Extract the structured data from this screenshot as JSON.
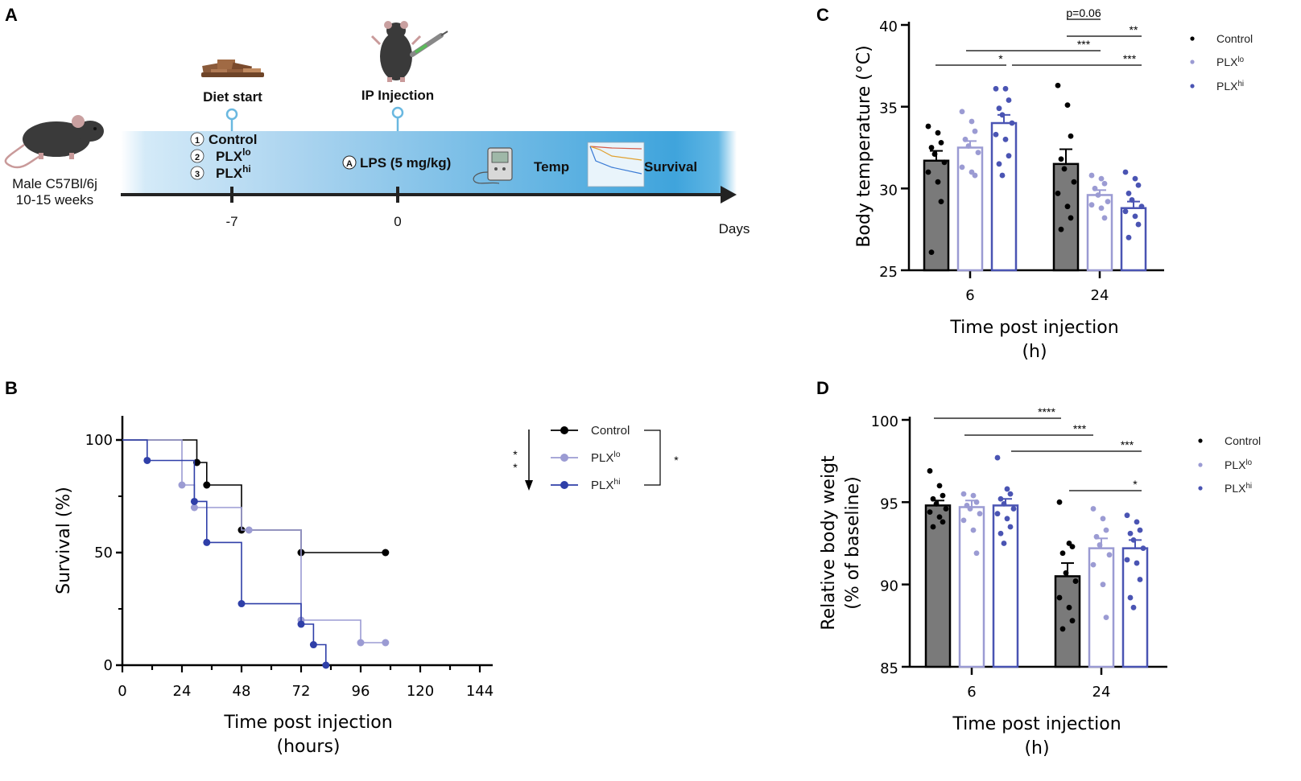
{
  "colors": {
    "control": "#000000",
    "plx_lo": "#9b9bd3",
    "plx_hi": "#4a54b3",
    "plx_hi_line": "#2f3fa8",
    "control_bar": "#7a7a7a",
    "timeline_blue": "#3fa4dc"
  },
  "panel_a": {
    "letter": "A",
    "mouse_caption_1": "Male C57Bl/6j",
    "mouse_caption_2": "10-15 weeks",
    "diet_start": "Diet start",
    "ip_injection": "IP Injection",
    "groups": [
      {
        "num": "1",
        "name": "Control",
        "sup": ""
      },
      {
        "num": "2",
        "name": "PLX",
        "sup": "lo"
      },
      {
        "num": "3",
        "name": "PLX",
        "sup": "hi"
      }
    ],
    "lps_badge": "A",
    "lps_text": "LPS (5 mg/kg)",
    "temp": "Temp",
    "survival": "Survival",
    "tick_minus7": "-7",
    "tick_0": "0",
    "axis_label": "Days",
    "icons": [
      "mouse-icon",
      "food-pellets-icon",
      "injected-mouse-icon",
      "syringe-icon",
      "thermometer-device-icon",
      "survival-curve-icon"
    ]
  },
  "panel_b": {
    "letter": "B",
    "ylabel": "Survival (%)",
    "xlabel_1": "Time post injection",
    "xlabel_2": "(hours)",
    "legend": [
      {
        "name": "Control",
        "sup": ""
      },
      {
        "name": "PLX",
        "sup": "lo"
      },
      {
        "name": "PLX",
        "sup": "hi"
      }
    ],
    "sig_trend": "* *",
    "sig_bracket": "*"
  },
  "panel_c": {
    "letter": "C",
    "ylabel": "Body temperature (°C)",
    "xlabel_1": "Time post injection",
    "xlabel_2": "(h)",
    "legend": [
      {
        "name": "Control",
        "sup": ""
      },
      {
        "name": "PLX",
        "sup": "lo"
      },
      {
        "name": "PLX",
        "sup": "hi"
      }
    ],
    "sig": [
      {
        "label": "p=0.06"
      },
      {
        "label": "**"
      },
      {
        "label": "***"
      },
      {
        "label": "*"
      },
      {
        "label": "***"
      }
    ]
  },
  "panel_d": {
    "letter": "D",
    "ylabel_1": "Relative body weigt",
    "ylabel_2": "(% of baseline)",
    "xlabel_1": "Time post injection",
    "xlabel_2": "(h)",
    "legend": [
      {
        "name": "Control",
        "sup": ""
      },
      {
        "name": "PLX",
        "sup": "lo"
      },
      {
        "name": "PLX",
        "sup": "hi"
      }
    ],
    "sig": [
      {
        "label": "****"
      },
      {
        "label": "***"
      },
      {
        "label": "***"
      },
      {
        "label": "*"
      }
    ]
  },
  "chart_data": [
    {
      "type": "line",
      "subtype": "kaplan-meier",
      "panel": "B",
      "xlabel": "Time post injection (hours)",
      "ylabel": "Survival (%)",
      "xlim": [
        0,
        144
      ],
      "ylim": [
        0,
        100
      ],
      "xticks": [
        0,
        24,
        48,
        72,
        96,
        120,
        144
      ],
      "yticks": [
        0,
        50,
        100
      ],
      "series": [
        {
          "name": "Control",
          "steps": [
            [
              0,
              100
            ],
            [
              30,
              100
            ],
            [
              30,
              90
            ],
            [
              34,
              90
            ],
            [
              34,
              80
            ],
            [
              48,
              80
            ],
            [
              48,
              60
            ],
            [
              72,
              60
            ],
            [
              72,
              50
            ],
            [
              106,
              50
            ]
          ],
          "markers": [
            [
              30,
              90
            ],
            [
              34,
              80
            ],
            [
              48,
              60
            ],
            [
              72,
              50
            ],
            [
              106,
              50
            ]
          ]
        },
        {
          "name": "PLXlo",
          "steps": [
            [
              0,
              100
            ],
            [
              24,
              100
            ],
            [
              24,
              80
            ],
            [
              29,
              80
            ],
            [
              29,
              70
            ],
            [
              48,
              70
            ],
            [
              48,
              60
            ],
            [
              72,
              60
            ],
            [
              72,
              20
            ],
            [
              96,
              20
            ],
            [
              96,
              10
            ],
            [
              106,
              10
            ]
          ],
          "markers": [
            [
              24,
              80
            ],
            [
              29,
              70
            ],
            [
              51,
              60
            ],
            [
              72,
              20
            ],
            [
              96,
              10
            ],
            [
              106,
              10
            ]
          ]
        },
        {
          "name": "PLXhi",
          "steps": [
            [
              0,
              100
            ],
            [
              10,
              100
            ],
            [
              10,
              90.9
            ],
            [
              29,
              90.9
            ],
            [
              29,
              72.7
            ],
            [
              34,
              72.7
            ],
            [
              34,
              54.5
            ],
            [
              48,
              54.5
            ],
            [
              48,
              27.3
            ],
            [
              72,
              27.3
            ],
            [
              72,
              18.2
            ],
            [
              77,
              18.2
            ],
            [
              77,
              9.1
            ],
            [
              82,
              9.1
            ],
            [
              82,
              0
            ]
          ],
          "markers": [
            [
              10,
              90.9
            ],
            [
              29,
              72.7
            ],
            [
              34,
              54.5
            ],
            [
              48,
              27.3
            ],
            [
              72,
              18.2
            ],
            [
              77,
              9.1
            ],
            [
              82,
              0
            ]
          ]
        }
      ]
    },
    {
      "type": "bar",
      "panel": "C",
      "categories": [
        "6",
        "24"
      ],
      "xlabel": "Time post injection (h)",
      "ylabel": "Body temperature (°C)",
      "ylim": [
        25,
        40
      ],
      "yticks": [
        25,
        30,
        35,
        40
      ],
      "series": [
        {
          "name": "Control",
          "values": [
            31.7,
            31.5
          ],
          "sem": [
            0.6,
            0.9
          ],
          "points": [
            [
              33.8,
              33.4,
              32.8,
              32.5,
              32.1,
              31.6,
              31.0,
              30.4,
              29.2,
              26.1
            ],
            [
              36.3,
              35.1,
              33.2,
              31.8,
              31.2,
              30.4,
              29.7,
              28.9,
              28.2,
              27.5
            ]
          ]
        },
        {
          "name": "PLXlo",
          "values": [
            32.5,
            29.6
          ],
          "sem": [
            0.4,
            0.3
          ],
          "points": [
            [
              34.7,
              34.1,
              33.5,
              33.0,
              32.6,
              32.2,
              31.3,
              31.0,
              30.8
            ],
            [
              30.8,
              30.6,
              30.3,
              30.0,
              29.6,
              29.2,
              29.0,
              28.8,
              28.2
            ]
          ]
        },
        {
          "name": "PLXhi",
          "values": [
            34.0,
            28.8
          ],
          "sem": [
            0.5,
            0.4
          ],
          "points": [
            [
              36.1,
              36.1,
              35.4,
              34.9,
              34.5,
              34.0,
              33.3,
              33.0,
              32.0,
              31.5,
              30.8
            ],
            [
              31.0,
              30.6,
              30.2,
              29.7,
              29.3,
              28.9,
              28.6,
              28.3,
              27.8,
              27.0
            ]
          ]
        }
      ]
    },
    {
      "type": "bar",
      "panel": "D",
      "categories": [
        "6",
        "24"
      ],
      "xlabel": "Time post injection (h)",
      "ylabel": "Relative body weigt (% of baseline)",
      "ylim": [
        85,
        100
      ],
      "yticks": [
        85,
        90,
        95,
        100
      ],
      "series": [
        {
          "name": "Control",
          "values": [
            94.8,
            90.5
          ],
          "sem": [
            0.3,
            0.8
          ],
          "points": [
            [
              96.9,
              96.0,
              95.4,
              95.2,
              94.9,
              94.6,
              94.4,
              94.1,
              93.8,
              93.5
            ],
            [
              95.0,
              92.5,
              92.3,
              91.9,
              90.7,
              90.2,
              89.2,
              88.6,
              87.8,
              87.3
            ]
          ]
        },
        {
          "name": "PLXlo",
          "values": [
            94.7,
            92.2
          ],
          "sem": [
            0.4,
            0.6
          ],
          "points": [
            [
              95.5,
              95.4,
              95.0,
              94.8,
              94.6,
              94.3,
              93.9,
              93.3,
              91.9
            ],
            [
              94.6,
              94.0,
              93.3,
              92.9,
              92.4,
              91.8,
              91.2,
              90.0,
              88.0
            ]
          ]
        },
        {
          "name": "PLXhi",
          "values": [
            94.8,
            92.2
          ],
          "sem": [
            0.4,
            0.5
          ],
          "points": [
            [
              97.7,
              95.8,
              95.5,
              95.2,
              94.9,
              94.6,
              94.3,
              94.0,
              93.5,
              93.1,
              92.5
            ],
            [
              94.2,
              93.8,
              93.3,
              93.1,
              92.7,
              92.2,
              91.5,
              91.3,
              90.3,
              89.2,
              88.6
            ]
          ]
        }
      ]
    }
  ]
}
